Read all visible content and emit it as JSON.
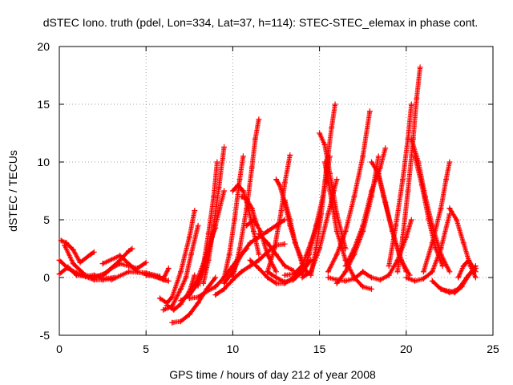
{
  "chart_data": {
    "type": "scatter",
    "title": "dSTEC Iono. truth (pdel, Lon=334, Lat=37, h=114): STEC-STEC_elemax in phase cont.",
    "xlabel": "GPS time / hours of day 212 of year 2008",
    "ylabel": "dSTEC  / TECUs",
    "xlim": [
      0,
      25
    ],
    "ylim": [
      -5,
      20
    ],
    "xticks": [
      0,
      5,
      10,
      15,
      20,
      25
    ],
    "yticks": [
      -5,
      0,
      5,
      10,
      15,
      20
    ],
    "grid": true,
    "marker": "+",
    "colors": {
      "series": "#ff0000",
      "grid": "#a0a0a0",
      "axis": "#000000"
    },
    "series": [
      {
        "x": [
          0.0,
          0.5,
          1.0,
          1.5,
          2.0,
          2.3
        ],
        "y": [
          0.3,
          0.9,
          0.2,
          0.1,
          0.2,
          0.1
        ]
      },
      {
        "x": [
          0.1,
          0.4,
          0.8,
          1.2,
          1.8,
          2.0
        ],
        "y": [
          3.2,
          3.0,
          2.4,
          1.3,
          2.0,
          2.2
        ]
      },
      {
        "x": [
          0.0,
          0.5,
          1.0,
          1.5,
          2.0,
          2.5,
          3.0
        ],
        "y": [
          1.5,
          0.8,
          0.4,
          0.1,
          -0.2,
          -0.2,
          -0.1
        ]
      },
      {
        "x": [
          0.3,
          0.8,
          1.5,
          2.5,
          3.2
        ],
        "y": [
          2.8,
          1.2,
          0.2,
          -0.1,
          0.0
        ]
      },
      {
        "x": [
          2.0,
          2.7,
          3.5,
          4.0,
          4.2
        ],
        "y": [
          0.0,
          0.4,
          1.5,
          2.3,
          2.5
        ]
      },
      {
        "x": [
          2.5,
          3.0,
          3.5,
          4.0,
          4.5,
          5.0
        ],
        "y": [
          0.2,
          0.8,
          1.2,
          1.0,
          0.8,
          1.3
        ]
      },
      {
        "x": [
          2.5,
          3.5,
          4.5,
          5.5,
          6.0,
          6.3
        ],
        "y": [
          1.2,
          1.9,
          0.5,
          0.1,
          -0.2,
          -0.3
        ]
      },
      {
        "x": [
          3.0,
          4.0,
          5.0,
          5.8
        ],
        "y": [
          -0.2,
          0.5,
          0.4,
          0.1
        ]
      },
      {
        "x": [
          5.0,
          5.5,
          6.0,
          6.3
        ],
        "y": [
          0.2,
          0.1,
          -0.1,
          0.8
        ]
      },
      {
        "x": [
          5.8,
          6.2,
          6.5,
          7.0,
          7.5,
          7.8
        ],
        "y": [
          -1.8,
          -2.2,
          -1.7,
          0.5,
          3.5,
          5.8
        ]
      },
      {
        "x": [
          6.0,
          6.5,
          7.0,
          7.3,
          7.6,
          8.0
        ],
        "y": [
          -2.8,
          -2.5,
          -1.0,
          0.0,
          2.0,
          4.5
        ]
      },
      {
        "x": [
          6.2,
          6.6,
          7.0,
          7.5,
          7.8
        ],
        "y": [
          -2.4,
          -2.8,
          -2.3,
          -1.2,
          0.2
        ]
      },
      {
        "x": [
          6.5,
          7.0,
          7.5,
          8.0,
          8.5,
          9.0
        ],
        "y": [
          -3.9,
          -3.8,
          -3.2,
          -2.2,
          -1.0,
          0.0
        ]
      },
      {
        "x": [
          7.0,
          7.5,
          8.0,
          8.5,
          8.8,
          9.0
        ],
        "y": [
          -2.0,
          -1.5,
          -0.5,
          1.5,
          3.5,
          4.3
        ]
      },
      {
        "x": [
          7.5,
          8.0,
          8.5,
          9.0,
          9.5
        ],
        "y": [
          -1.5,
          0.0,
          2.0,
          4.5,
          7.5
        ]
      },
      {
        "x": [
          7.5,
          8.0,
          8.5,
          9.0,
          9.5,
          10.0,
          10.5,
          10.8
        ],
        "y": [
          -1.8,
          -1.7,
          -1.2,
          -0.8,
          0.0,
          1.0,
          2.0,
          2.5
        ]
      },
      {
        "x": [
          8.0,
          8.3,
          8.6,
          8.9,
          9.1
        ],
        "y": [
          -0.7,
          1.0,
          3.8,
          7.0,
          10.0
        ]
      },
      {
        "x": [
          8.3,
          8.6,
          8.9,
          9.2,
          9.5
        ],
        "y": [
          -0.5,
          1.5,
          4.5,
          7.8,
          11.3
        ]
      },
      {
        "x": [
          9.0,
          9.5,
          10.0,
          10.5,
          11.0,
          11.5,
          12.0,
          12.5,
          13.0
        ],
        "y": [
          -1.5,
          -1.0,
          -0.2,
          0.5,
          1.0,
          1.5,
          2.2,
          2.8,
          2.9
        ]
      },
      {
        "x": [
          9.5,
          9.8,
          10.1,
          10.4,
          10.6
        ],
        "y": [
          0.0,
          2.0,
          5.0,
          8.5,
          10.5
        ]
      },
      {
        "x": [
          9.5,
          10.0,
          10.5,
          11.0,
          11.5,
          12.0,
          12.5,
          13.0
        ],
        "y": [
          -0.5,
          0.5,
          2.0,
          3.0,
          3.5,
          4.0,
          4.5,
          5.0
        ]
      },
      {
        "x": [
          10.0,
          10.4,
          10.8,
          11.1,
          11.3,
          11.5
        ],
        "y": [
          0.0,
          2.5,
          6.0,
          9.5,
          12.0,
          13.7
        ]
      },
      {
        "x": [
          10.0,
          10.3,
          10.6,
          10.9,
          11.2,
          11.5
        ],
        "y": [
          7.5,
          8.0,
          7.5,
          6.0,
          4.0,
          2.0
        ]
      },
      {
        "x": [
          10.5,
          10.8,
          11.1,
          11.4
        ],
        "y": [
          7.0,
          6.8,
          6.0,
          4.5
        ]
      },
      {
        "x": [
          10.8,
          11.2,
          11.6,
          12.0,
          12.5
        ],
        "y": [
          4.5,
          5.0,
          4.0,
          2.0,
          0.5
        ]
      },
      {
        "x": [
          11.5,
          12.0,
          12.5,
          13.0,
          13.5
        ],
        "y": [
          3.8,
          3.0,
          2.0,
          1.0,
          0.6
        ]
      },
      {
        "x": [
          11.0,
          11.5,
          12.0,
          12.5,
          13.0,
          13.5,
          14.0
        ],
        "y": [
          1.5,
          0.8,
          0.0,
          -0.5,
          -0.5,
          0.0,
          0.6
        ]
      },
      {
        "x": [
          12.0,
          12.5,
          13.0,
          13.5,
          14.0,
          14.5
        ],
        "y": [
          0.5,
          0.0,
          -0.4,
          -0.2,
          0.5,
          1.5
        ]
      },
      {
        "x": [
          12.0,
          12.4,
          12.8,
          13.0,
          13.3
        ],
        "y": [
          0.5,
          2.5,
          5.8,
          8.2,
          10.6
        ]
      },
      {
        "x": [
          12.5,
          12.7,
          13.0,
          13.3,
          13.6,
          14.0
        ],
        "y": [
          8.5,
          8.0,
          6.5,
          4.5,
          3.0,
          1.5
        ]
      },
      {
        "x": [
          13.0,
          13.3,
          13.6,
          14.0,
          14.3
        ],
        "y": [
          6.7,
          5.0,
          3.0,
          1.2,
          0.4
        ]
      },
      {
        "x": [
          13.0,
          13.5,
          14.0,
          14.5,
          15.0
        ],
        "y": [
          0.2,
          0.3,
          1.0,
          3.0,
          5.2
        ]
      },
      {
        "x": [
          14.0,
          14.4,
          14.8,
          15.2,
          15.6
        ],
        "y": [
          0.2,
          2.0,
          4.5,
          7.0,
          10.5
        ]
      },
      {
        "x": [
          14.0,
          14.5,
          15.0,
          15.5,
          16.0
        ],
        "y": [
          0.0,
          0.5,
          2.5,
          5.5,
          8.5
        ]
      },
      {
        "x": [
          14.5,
          14.8,
          15.1,
          15.4,
          15.7,
          15.9
        ],
        "y": [
          0.2,
          2.5,
          5.5,
          9.5,
          13.0,
          15.0
        ]
      },
      {
        "x": [
          15.0,
          15.3,
          15.6,
          16.0,
          16.5
        ],
        "y": [
          12.5,
          11.5,
          9.0,
          5.5,
          2.5
        ]
      },
      {
        "x": [
          15.3,
          15.6,
          16.0,
          16.5,
          17.0,
          17.5,
          18.0
        ],
        "y": [
          10.0,
          7.5,
          4.0,
          1.5,
          0.0,
          -0.8,
          -1.0
        ]
      },
      {
        "x": [
          15.5,
          16.0,
          16.5,
          17.0,
          17.5
        ],
        "y": [
          0.0,
          -0.2,
          -0.3,
          -0.1,
          0.5
        ]
      },
      {
        "x": [
          15.5,
          16.0,
          16.5,
          17.0,
          17.5,
          17.9
        ],
        "y": [
          0.5,
          2.0,
          4.0,
          7.0,
          10.5,
          14.4
        ]
      },
      {
        "x": [
          16.0,
          16.5,
          17.0,
          17.5,
          18.0,
          18.4
        ],
        "y": [
          -0.5,
          0.5,
          2.0,
          4.0,
          7.0,
          10.5
        ]
      },
      {
        "x": [
          16.5,
          17.0,
          17.5,
          18.0,
          18.5,
          18.8
        ],
        "y": [
          1.0,
          2.5,
          4.5,
          7.5,
          9.5,
          11.2
        ]
      },
      {
        "x": [
          18.0,
          18.4,
          18.8,
          19.2,
          19.6,
          20.0
        ],
        "y": [
          10.0,
          9.0,
          6.5,
          4.0,
          2.0,
          0.5
        ]
      },
      {
        "x": [
          18.3,
          18.7,
          19.2,
          19.7,
          20.2
        ],
        "y": [
          9.5,
          7.0,
          4.0,
          1.5,
          0.2
        ]
      },
      {
        "x": [
          17.5,
          18.0,
          18.5,
          19.0,
          19.5,
          20.0,
          20.3
        ],
        "y": [
          0.5,
          0.0,
          -0.2,
          0.2,
          1.5,
          3.5,
          5.0
        ]
      },
      {
        "x": [
          19.0,
          19.4,
          19.8,
          20.1,
          20.3
        ],
        "y": [
          1.0,
          4.5,
          8.5,
          12.0,
          15.0
        ]
      },
      {
        "x": [
          19.5,
          19.8,
          20.1,
          20.4,
          20.6,
          20.8
        ],
        "y": [
          0.5,
          3.5,
          7.5,
          12.0,
          15.5,
          18.2
        ]
      },
      {
        "x": [
          20.3,
          20.7,
          21.1,
          21.5,
          22.0,
          22.5
        ],
        "y": [
          12.0,
          10.0,
          7.0,
          4.5,
          2.0,
          0.5
        ]
      },
      {
        "x": [
          20.5,
          20.9,
          21.3,
          21.7,
          22.1
        ],
        "y": [
          10.5,
          8.0,
          5.0,
          2.5,
          1.0
        ]
      },
      {
        "x": [
          20.0,
          20.5,
          21.0,
          21.5,
          22.0,
          22.5
        ],
        "y": [
          0.0,
          -0.3,
          -0.1,
          0.5,
          2.5,
          5.5
        ]
      },
      {
        "x": [
          21.0,
          21.5,
          22.0,
          22.3,
          22.5
        ],
        "y": [
          0.5,
          3.0,
          6.0,
          8.5,
          10.0
        ]
      },
      {
        "x": [
          21.5,
          22.0,
          22.5,
          23.0,
          23.5,
          24.0
        ],
        "y": [
          -0.3,
          -1.0,
          -1.3,
          -1.0,
          0.0,
          1.0
        ]
      },
      {
        "x": [
          22.0,
          22.5,
          22.8,
          23.2,
          23.6,
          24.0
        ],
        "y": [
          -1.0,
          -1.2,
          -1.3,
          -0.8,
          0.2,
          0.8
        ]
      },
      {
        "x": [
          22.5,
          22.9,
          23.3,
          23.7,
          24.0
        ],
        "y": [
          6.0,
          5.0,
          3.0,
          1.0,
          0.0
        ]
      },
      {
        "x": [
          23.0,
          23.3,
          23.6,
          23.8,
          24.0
        ],
        "y": [
          0.0,
          1.0,
          1.5,
          1.0,
          0.5
        ]
      }
    ]
  }
}
